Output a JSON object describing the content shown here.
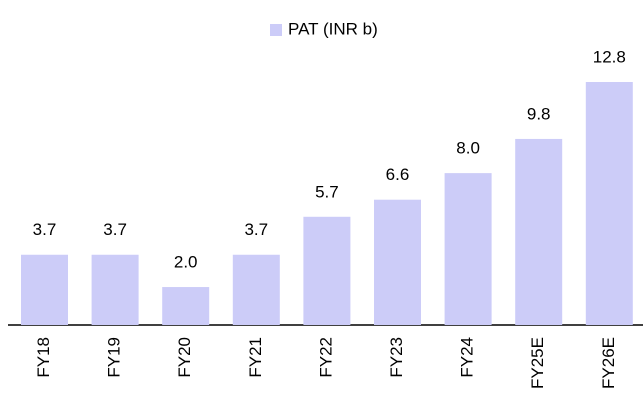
{
  "chart_data": {
    "type": "bar",
    "legend": "PAT (INR b)",
    "categories": [
      "FY18",
      "FY19",
      "FY20",
      "FY21",
      "FY22",
      "FY23",
      "FY24",
      "FY25E",
      "FY26E"
    ],
    "values": [
      3.7,
      3.7,
      2.0,
      3.7,
      5.7,
      6.6,
      8.0,
      9.8,
      12.8
    ],
    "value_labels": [
      "3.7",
      "3.7",
      "2.0",
      "3.7",
      "5.7",
      "6.6",
      "8.0",
      "9.8",
      "12.8"
    ],
    "color": "#ccccf8"
  }
}
